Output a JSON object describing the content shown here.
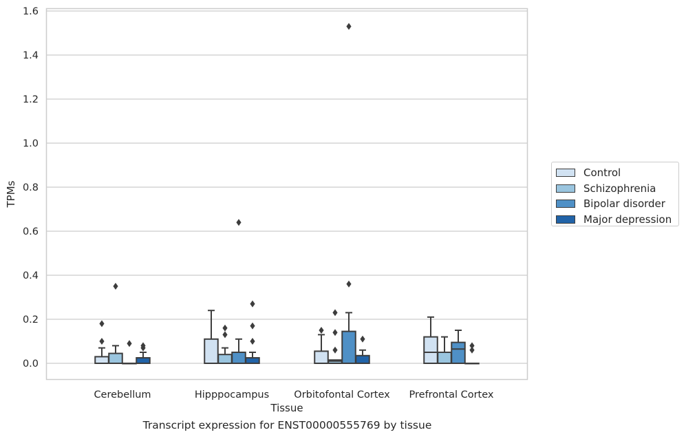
{
  "chart_data": {
    "type": "box",
    "title": "Transcript expression for ENST00000555769 by tissue",
    "xlabel": "Tissue",
    "ylabel": "TPMs",
    "ylim": [
      -0.07,
      1.61
    ],
    "yticks": [
      0.0,
      0.2,
      0.4,
      0.6,
      0.8,
      1.0,
      1.2,
      1.4,
      1.6
    ],
    "ytick_labels": [
      "0.0",
      "0.2",
      "0.4",
      "0.6",
      "0.8",
      "1.0",
      "1.2",
      "1.4",
      "1.6"
    ],
    "grid": "horizontal",
    "legend_position": "right",
    "categories": [
      "Cerebellum",
      "Hipppocampus",
      "Orbitofontal Cortex",
      "Prefrontal Cortex"
    ],
    "series": [
      {
        "name": "Control",
        "color": "#d1e2f2",
        "boxes": [
          {
            "q1": 0,
            "median": 0,
            "q3": 0.03,
            "whisker_low": 0,
            "whisker_high": 0.07,
            "outliers": [
              0.1,
              0.18
            ]
          },
          {
            "q1": 0,
            "median": 0,
            "q3": 0.11,
            "whisker_low": 0,
            "whisker_high": 0.24,
            "outliers": []
          },
          {
            "q1": 0,
            "median": 0,
            "q3": 0.055,
            "whisker_low": 0,
            "whisker_high": 0.13,
            "outliers": [
              0.15
            ]
          },
          {
            "q1": 0,
            "median": 0.05,
            "q3": 0.12,
            "whisker_low": 0,
            "whisker_high": 0.21,
            "outliers": []
          }
        ]
      },
      {
        "name": "Schizophrenia",
        "color": "#9ac5df",
        "boxes": [
          {
            "q1": 0,
            "median": 0,
            "q3": 0.045,
            "whisker_low": 0,
            "whisker_high": 0.08,
            "outliers": [
              0.35
            ]
          },
          {
            "q1": 0,
            "median": 0,
            "q3": 0.04,
            "whisker_low": 0,
            "whisker_high": 0.07,
            "outliers": [
              0.13,
              0.16
            ]
          },
          {
            "q1": 0,
            "median": 0.01,
            "q3": 0.015,
            "whisker_low": 0,
            "whisker_high": 0.015,
            "outliers": [
              0.06,
              0.14,
              0.23
            ]
          },
          {
            "q1": 0,
            "median": 0,
            "q3": 0.05,
            "whisker_low": 0,
            "whisker_high": 0.12,
            "outliers": []
          }
        ]
      },
      {
        "name": "Bipolar disorder",
        "color": "#4f90c6",
        "boxes": [
          {
            "q1": 0,
            "median": 0,
            "q3": 0,
            "whisker_low": 0,
            "whisker_high": 0,
            "outliers": [
              0.09
            ]
          },
          {
            "q1": 0,
            "median": 0,
            "q3": 0.05,
            "whisker_low": 0,
            "whisker_high": 0.11,
            "outliers": [
              0.64
            ]
          },
          {
            "q1": 0,
            "median": 0,
            "q3": 0.145,
            "whisker_low": 0,
            "whisker_high": 0.23,
            "outliers": [
              0.36,
              1.53
            ]
          },
          {
            "q1": 0,
            "median": 0.065,
            "q3": 0.095,
            "whisker_low": 0,
            "whisker_high": 0.15,
            "outliers": []
          }
        ]
      },
      {
        "name": "Major depression",
        "color": "#2163a8",
        "boxes": [
          {
            "q1": 0,
            "median": 0,
            "q3": 0.025,
            "whisker_low": 0,
            "whisker_high": 0.05,
            "outliers": [
              0.07,
              0.08
            ]
          },
          {
            "q1": 0,
            "median": 0,
            "q3": 0.025,
            "whisker_low": 0,
            "whisker_high": 0.05,
            "outliers": [
              0.1,
              0.17,
              0.27
            ]
          },
          {
            "q1": 0,
            "median": 0,
            "q3": 0.035,
            "whisker_low": 0,
            "whisker_high": 0.06,
            "outliers": [
              0.11
            ]
          },
          {
            "q1": 0,
            "median": 0,
            "q3": 0,
            "whisker_low": 0,
            "whisker_high": 0,
            "outliers": [
              0.06,
              0.08
            ]
          }
        ]
      }
    ]
  }
}
